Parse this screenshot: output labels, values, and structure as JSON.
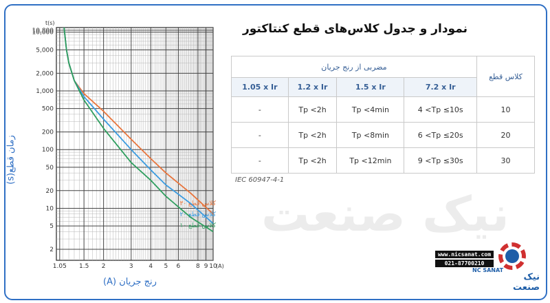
{
  "page": {
    "title": "نمودار و جدول کلاس‌های قطع کنتاکتور",
    "watermark": "نیک صنعت"
  },
  "chart_data": {
    "type": "line",
    "x_scale": "log",
    "y_scale": "log",
    "xlim": [
      1,
      10
    ],
    "ylim": [
      1.3,
      12000
    ],
    "x_unit": "(A)",
    "y_unit": "t(s)",
    "xlabel": "رنج جریان (A)",
    "ylabel": "زمان قطع(s)",
    "x_ticks": [
      {
        "value": 1.05,
        "label": "1.05"
      },
      {
        "value": 1.5,
        "label": "1.5"
      },
      {
        "value": 2,
        "label": "2"
      },
      {
        "value": 3,
        "label": "3"
      },
      {
        "value": 4,
        "label": "4"
      },
      {
        "value": 5,
        "label": "5"
      },
      {
        "value": 6,
        "label": "6"
      },
      {
        "value": 8,
        "label": "8"
      },
      {
        "value": 9,
        "label": "9"
      },
      {
        "value": 10,
        "label": "10"
      }
    ],
    "y_ticks": [
      {
        "value": 10800,
        "label": "10,800"
      },
      {
        "value": 10000,
        "label": "10,000"
      },
      {
        "value": 5000,
        "label": "5,000"
      },
      {
        "value": 2000,
        "label": "2,000"
      },
      {
        "value": 1000,
        "label": "1,000"
      },
      {
        "value": 500,
        "label": "500"
      },
      {
        "value": 200,
        "label": "200"
      },
      {
        "value": 100,
        "label": "100"
      },
      {
        "value": 50,
        "label": "50"
      },
      {
        "value": 20,
        "label": "20"
      },
      {
        "value": 10,
        "label": "10"
      },
      {
        "value": 5,
        "label": "5"
      },
      {
        "value": 2,
        "label": "2"
      }
    ],
    "grid": true,
    "series": [
      {
        "name": "کلاس قطع ۳۰",
        "color": "#e8743b",
        "x": [
          1.12,
          1.16,
          1.2,
          1.3,
          1.5,
          2,
          3,
          4,
          5,
          7.2,
          10
        ],
        "y": [
          12000,
          5000,
          3000,
          1500,
          900,
          450,
          150,
          70,
          40,
          18,
          8
        ]
      },
      {
        "name": "کلاس قطع ۲۰",
        "color": "#3a9be0",
        "x": [
          1.12,
          1.16,
          1.2,
          1.3,
          1.5,
          2,
          3,
          4,
          5,
          7.2,
          10
        ],
        "y": [
          12000,
          5000,
          3000,
          1500,
          800,
          330,
          100,
          45,
          25,
          12,
          5.5
        ]
      },
      {
        "name": "کلاس قطع ۱۰",
        "color": "#2e9e5e",
        "x": [
          1.12,
          1.16,
          1.2,
          1.3,
          1.5,
          2,
          3,
          4,
          5,
          7.2,
          10
        ],
        "y": [
          12000,
          5000,
          3000,
          1500,
          700,
          230,
          60,
          30,
          16,
          7,
          4
        ]
      }
    ]
  },
  "table": {
    "class_header": "کلاس قطع",
    "multiplier_header": "مضربی از رنج جریان",
    "columns": [
      "1.05 x Ir",
      "1.2 x Ir",
      "1.5 x Ir",
      "7.2 x Ir"
    ],
    "rows": [
      {
        "class": "10",
        "cells": [
          "-",
          "Tp <2h",
          "Tp <4min",
          "4 <Tp  ≤10s"
        ]
      },
      {
        "class": "20",
        "cells": [
          "-",
          "Tp <2h",
          "Tp <8min",
          "6 <Tp  ≤20s"
        ]
      },
      {
        "class": "30",
        "cells": [
          "-",
          "Tp <2h",
          "Tp <12min",
          "9 <Tp  ≤30s"
        ]
      }
    ],
    "standard": "IEC 60947-4-1"
  },
  "logo": {
    "website": "www.nicsanat.com",
    "phone": "021-87700210",
    "brand_en": "NC SANAT",
    "brand_fa": "نیک صنعت"
  },
  "colors": {
    "frame": "#2f6fc4",
    "class30": "#e8743b",
    "class20": "#3a9be0",
    "class10": "#2e9e5e"
  }
}
